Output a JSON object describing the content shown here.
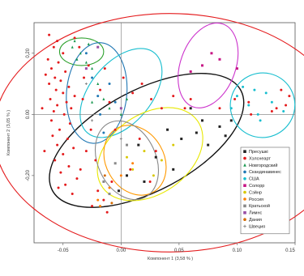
{
  "chart_data": {
    "type": "scatter",
    "xlabel": "Компонент 1 (3,58 % )",
    "ylabel": "Компонент 2 (3,05 % )",
    "xlim": [
      -0.075,
      0.15
    ],
    "ylim": [
      -0.42,
      0.3
    ],
    "x_ticks": [
      -0.05,
      0.0,
      0.05,
      0.1,
      0.15
    ],
    "x_tick_labels": [
      "-0.05",
      "0.00",
      "0.05",
      "0.10",
      "0.15"
    ],
    "y_ticks": [
      0.2,
      0.0,
      -0.2
    ],
    "y_tick_labels": [
      "0,20",
      "0.00",
      "-0,20"
    ],
    "reference_lines": {
      "x": 0.0,
      "y": 0.0
    },
    "grid": false,
    "legend_position": "right",
    "legend": [
      {
        "name": "Пресушкi",
        "color": "#222222",
        "marker": "square"
      },
      {
        "name": "Хэлснеарт",
        "color": "#e41a1c",
        "marker": "circle"
      },
      {
        "name": "Новгородский",
        "color": "#1a9850",
        "marker": "triangle"
      },
      {
        "name": "Скандинавинес",
        "color": "#1f77b4",
        "marker": "circle"
      },
      {
        "name": "США",
        "color": "#17becf",
        "marker": "circle"
      },
      {
        "name": "Cолорр",
        "color": "#c71585",
        "marker": "square"
      },
      {
        "name": "Сэйнр",
        "color": "#d8c800",
        "marker": "circle"
      },
      {
        "name": "Россия",
        "color": "#ff7f00",
        "marker": "circle"
      },
      {
        "name": "Кратьской",
        "color": "#888888",
        "marker": "square"
      },
      {
        "name": "Лимнс",
        "color": "#984ea3",
        "marker": "square"
      },
      {
        "name": "Дания",
        "color": "#d46a00",
        "marker": "circle"
      },
      {
        "name": "Швеция",
        "color": "#8a8a8a",
        "marker": "plus"
      }
    ],
    "ellipses": [
      {
        "group": "Пресушкi",
        "color": "#111111",
        "cx": 0.022,
        "cy": -0.085,
        "rx": 0.092,
        "ry": 0.165,
        "rotation_deg": 28
      },
      {
        "group": "Новгородский",
        "color": "#2ca02c",
        "cx": -0.034,
        "cy": 0.205,
        "rx": 0.019,
        "ry": 0.045,
        "rotation_deg": 0
      },
      {
        "group": "Скандинавинес",
        "color": "#1f77b4",
        "cx": -0.021,
        "cy": 0.07,
        "rx": 0.026,
        "ry": 0.165,
        "rotation_deg": -5
      },
      {
        "group": "США",
        "color": "#17becf",
        "cx": 0.122,
        "cy": 0.03,
        "rx": 0.028,
        "ry": 0.105,
        "rotation_deg": 55
      },
      {
        "group": "Cолорр",
        "color": "#cc33cc",
        "cx": 0.075,
        "cy": 0.16,
        "rx": 0.038,
        "ry": 0.09,
        "rotation_deg": 70
      },
      {
        "group": "США",
        "color": "#17becf",
        "cx": 0.0,
        "cy": 0.07,
        "rx": 0.045,
        "ry": 0.1,
        "rotation_deg": 50
      },
      {
        "group": "Сэйнр",
        "color": "#e8e800",
        "cx": 0.025,
        "cy": -0.13,
        "rx": 0.05,
        "ry": 0.13,
        "rotation_deg": 35
      },
      {
        "group": "Россия",
        "color": "#ff9900",
        "cx": 0.012,
        "cy": -0.15,
        "rx": 0.025,
        "ry": 0.12,
        "rotation_deg": 30
      },
      {
        "group": "Кратьской",
        "color": "#888888",
        "cx": 0.005,
        "cy": -0.15,
        "rx": 0.025,
        "ry": 0.135,
        "rotation_deg": 25
      },
      {
        "group": "Хэлснеарт",
        "color": "#e41a1c",
        "cx": 0.042,
        "cy": -0.06,
        "rx": 0.152,
        "ry": 0.39,
        "rotation_deg": 0
      }
    ],
    "series": [
      {
        "name": "Хэлснеарт",
        "color": "#e41a1c",
        "points": [
          [
            -0.062,
            0.26
          ],
          [
            -0.055,
            0.24
          ],
          [
            -0.058,
            0.22
          ],
          [
            -0.05,
            0.2
          ],
          [
            -0.063,
            0.18
          ],
          [
            -0.054,
            0.17
          ],
          [
            -0.06,
            0.15
          ],
          [
            -0.048,
            0.14
          ],
          [
            -0.057,
            0.12
          ],
          [
            -0.052,
            0.11
          ],
          [
            -0.062,
            0.1
          ],
          [
            -0.045,
            0.09
          ],
          [
            -0.056,
            0.08
          ],
          [
            -0.05,
            0.07
          ],
          [
            -0.04,
            0.06
          ],
          [
            -0.061,
            0.05
          ],
          [
            -0.047,
            0.04
          ],
          [
            -0.055,
            0.03
          ],
          [
            -0.043,
            0.02
          ],
          [
            -0.058,
            0.01
          ],
          [
            -0.049,
            0.0
          ],
          [
            -0.06,
            -0.02
          ],
          [
            -0.044,
            -0.03
          ],
          [
            -0.053,
            -0.05
          ],
          [
            -0.059,
            -0.07
          ],
          [
            -0.046,
            -0.08
          ],
          [
            -0.055,
            -0.1
          ],
          [
            -0.041,
            -0.11
          ],
          [
            -0.05,
            -0.13
          ],
          [
            -0.057,
            -0.15
          ],
          [
            -0.045,
            -0.17
          ],
          [
            -0.052,
            -0.19
          ],
          [
            -0.038,
            -0.21
          ],
          [
            -0.048,
            -0.23
          ],
          [
            -0.054,
            -0.24
          ],
          [
            -0.042,
            -0.26
          ],
          [
            -0.035,
            -0.18
          ],
          [
            -0.03,
            -0.12
          ],
          [
            -0.032,
            0.12
          ],
          [
            -0.028,
            0.16
          ],
          [
            -0.036,
            0.22
          ],
          [
            -0.04,
            0.25
          ],
          [
            -0.033,
            0.05
          ],
          [
            -0.026,
            -0.05
          ],
          [
            -0.022,
            -0.15
          ],
          [
            -0.018,
            0.08
          ],
          [
            -0.014,
            0.15
          ],
          [
            -0.02,
            -0.25
          ],
          [
            -0.01,
            0.04
          ],
          [
            -0.025,
            -0.3
          ],
          [
            -0.015,
            -0.28
          ],
          [
            -0.008,
            -0.22
          ],
          [
            0.002,
            0.12
          ],
          [
            0.01,
            0.07
          ],
          [
            0.018,
            0.1
          ],
          [
            0.026,
            0.05
          ],
          [
            0.035,
            0.02
          ],
          [
            0.045,
            0.06
          ],
          [
            0.055,
            0.02
          ],
          [
            0.06,
            0.05
          ],
          [
            0.085,
            0.02
          ],
          [
            0.11,
            0.04
          ],
          [
            0.13,
            0.01
          ],
          [
            0.142,
            0.03
          ],
          [
            0.145,
            0.06
          ],
          [
            0.138,
            0.08
          ],
          [
            0.134,
            0.02
          ],
          [
            0.112,
            0.0
          ],
          [
            0.098,
            0.05
          ],
          [
            0.016,
            -0.08
          ],
          [
            0.008,
            -0.18
          ],
          [
            -0.012,
            -0.32
          ],
          [
            0.025,
            -0.22
          ],
          [
            0.03,
            -0.12
          ],
          [
            -0.005,
            -0.05
          ],
          [
            -0.065,
            0.13
          ],
          [
            -0.066,
            -0.12
          ],
          [
            -0.068,
            0.02
          ]
        ]
      },
      {
        "name": "Пресушкi",
        "color": "#222222",
        "points": [
          [
            0.04,
            -0.05
          ],
          [
            0.052,
            -0.08
          ],
          [
            0.07,
            -0.02
          ],
          [
            0.085,
            -0.04
          ],
          [
            0.09,
            -0.07
          ],
          [
            0.06,
            0.02
          ],
          [
            0.075,
            -0.1
          ],
          [
            0.03,
            -0.14
          ],
          [
            0.045,
            -0.18
          ],
          [
            0.02,
            -0.22
          ],
          [
            0.015,
            -0.1
          ],
          [
            0.095,
            -0.02
          ],
          [
            0.065,
            -0.06
          ],
          [
            0.005,
            -0.2
          ],
          [
            -0.002,
            -0.25
          ]
        ]
      },
      {
        "name": "Новгородский",
        "color": "#1a9850",
        "points": [
          [
            -0.042,
            0.22
          ],
          [
            -0.035,
            0.2
          ],
          [
            -0.028,
            0.23
          ],
          [
            -0.038,
            0.18
          ],
          [
            -0.03,
            0.17
          ],
          [
            -0.025,
            0.15
          ],
          [
            -0.04,
            0.24
          ],
          [
            -0.02,
            0.1
          ],
          [
            -0.015,
            0.05
          ],
          [
            -0.01,
            0.02
          ],
          [
            0.0,
            0.0
          ],
          [
            -0.025,
            0.04
          ],
          [
            0.005,
            0.05
          ]
        ]
      },
      {
        "name": "Скандинавинес",
        "color": "#1f77b4",
        "points": [
          [
            -0.03,
            0.2
          ],
          [
            -0.025,
            0.12
          ],
          [
            -0.02,
            0.06
          ],
          [
            -0.018,
            0.0
          ],
          [
            -0.015,
            -0.06
          ],
          [
            -0.01,
            0.1
          ],
          [
            -0.005,
            0.04
          ]
        ]
      },
      {
        "name": "США",
        "color": "#17becf",
        "points": [
          [
            0.1,
            0.06
          ],
          [
            0.11,
            0.03
          ],
          [
            0.118,
            0.0
          ],
          [
            0.125,
            0.07
          ],
          [
            0.13,
            0.04
          ],
          [
            0.105,
            0.09
          ],
          [
            0.095,
            0.02
          ],
          [
            0.12,
            -0.02
          ],
          [
            0.14,
            0.01
          ],
          [
            0.115,
            0.08
          ]
        ]
      },
      {
        "name": "Cолорр",
        "color": "#c71585",
        "points": [
          [
            0.07,
            0.16
          ],
          [
            0.085,
            0.18
          ],
          [
            0.1,
            0.15
          ],
          [
            0.06,
            0.14
          ],
          [
            0.078,
            0.2
          ]
        ]
      },
      {
        "name": "Сэйнр",
        "color": "#d8c800",
        "points": [
          [
            0.02,
            -0.12
          ],
          [
            0.035,
            -0.15
          ],
          [
            0.01,
            -0.18
          ],
          [
            0.045,
            -0.1
          ],
          [
            0.028,
            -0.2
          ],
          [
            0.005,
            -0.14
          ]
        ]
      },
      {
        "name": "Россия",
        "color": "#ff7f00",
        "points": [
          [
            -0.02,
            -0.28
          ],
          [
            -0.01,
            -0.24
          ],
          [
            0.0,
            -0.2
          ],
          [
            -0.018,
            -0.3
          ],
          [
            0.01,
            -0.16
          ]
        ]
      },
      {
        "name": "Кратьской",
        "color": "#888888",
        "points": [
          [
            -0.015,
            -0.22
          ],
          [
            -0.005,
            -0.16
          ],
          [
            0.005,
            -0.1
          ],
          [
            -0.01,
            -0.26
          ]
        ]
      },
      {
        "name": "Лимнс",
        "color": "#984ea3",
        "points": [
          [
            -0.02,
            0.22
          ],
          [
            -0.03,
            0.15
          ],
          [
            0.0,
            0.02
          ]
        ]
      },
      {
        "name": "Дания",
        "color": "#d46a00",
        "points": [
          [
            -0.008,
            -0.29
          ],
          [
            -0.014,
            -0.2
          ]
        ]
      },
      {
        "name": "Швеция",
        "color": "#8a8a8a",
        "points": [
          [
            -0.03,
            0.1
          ],
          [
            -0.025,
            -0.02
          ],
          [
            0.0,
            -0.08
          ]
        ]
      }
    ]
  }
}
